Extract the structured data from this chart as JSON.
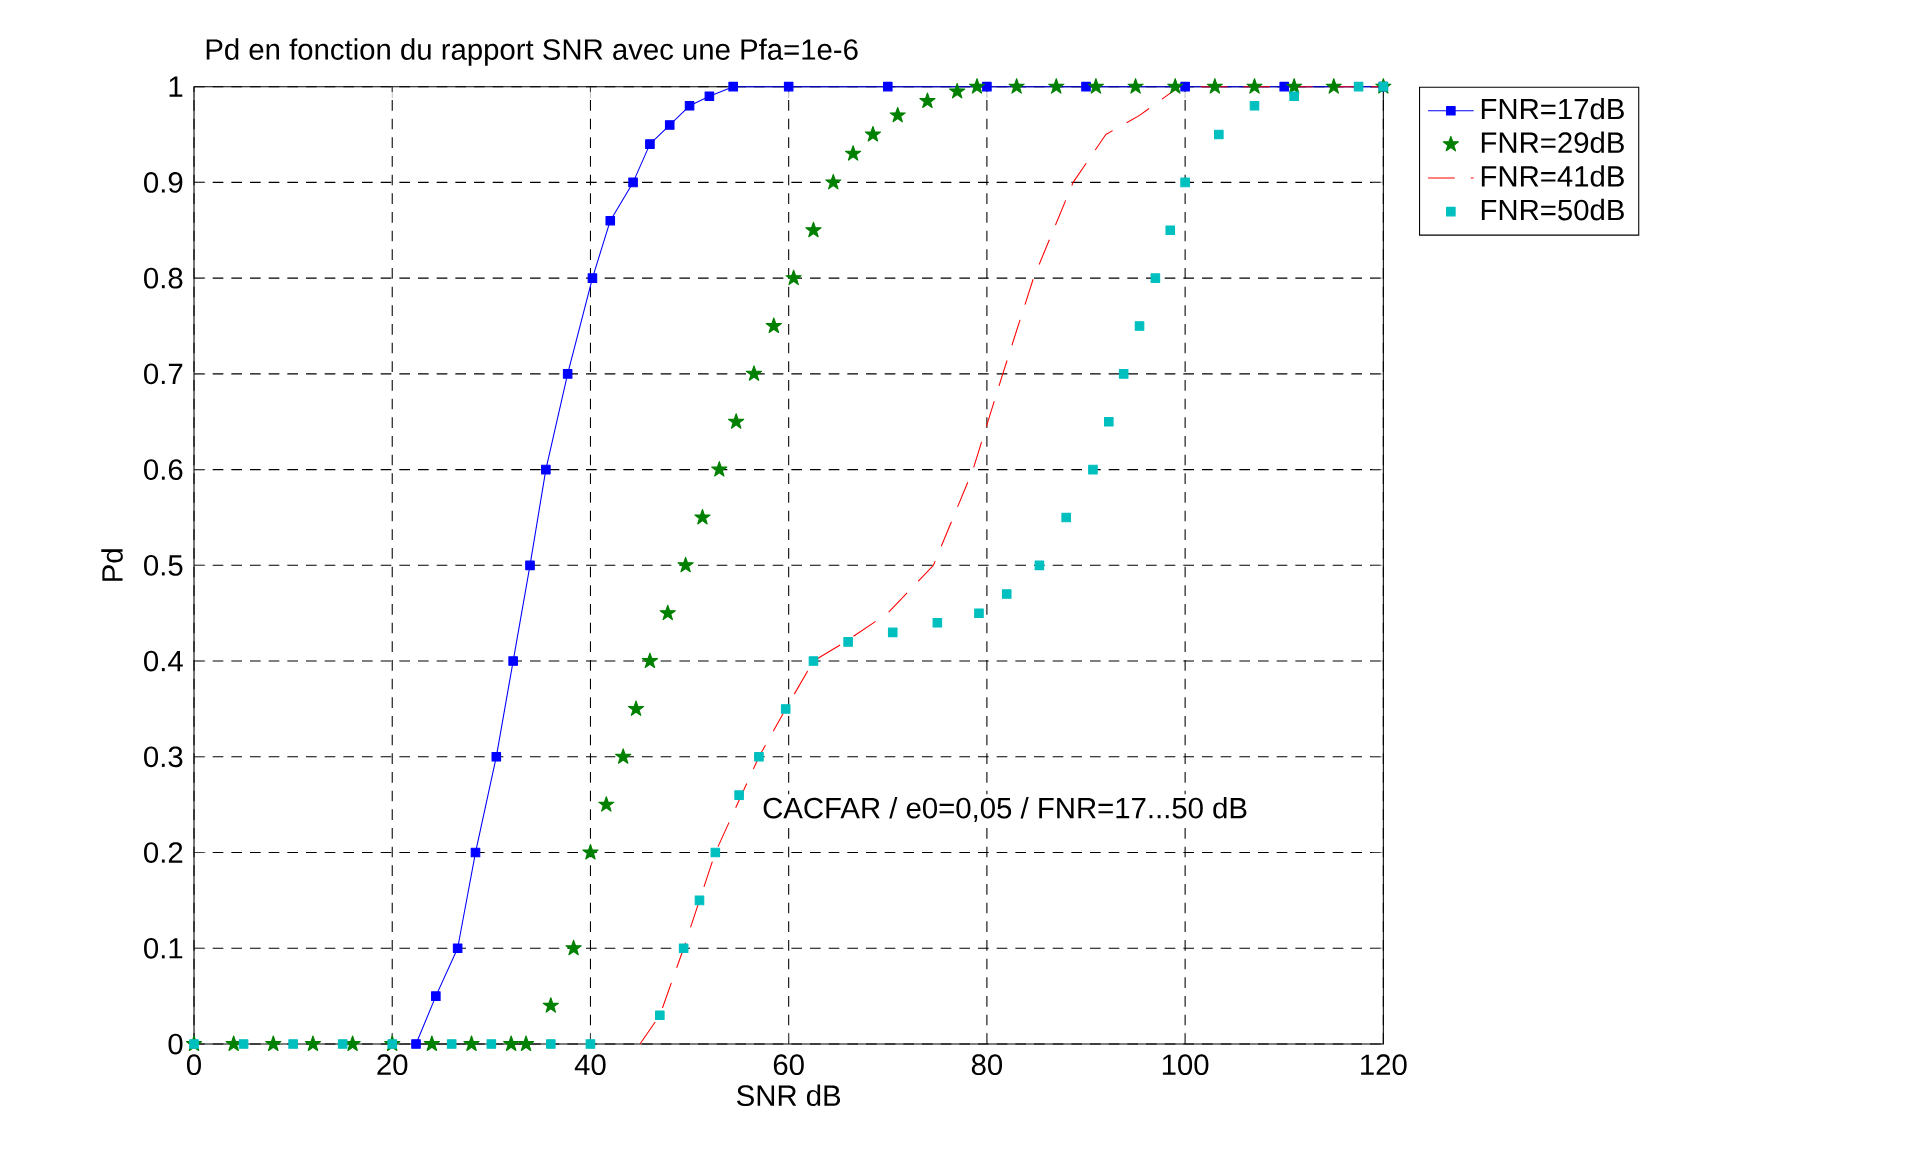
{
  "chart_data": {
    "type": "line",
    "title": "Pd en fonction du rapport SNR avec une Pfa=1e-6",
    "xlabel": "SNR dB",
    "ylabel": "Pd",
    "xlim": [
      0,
      120
    ],
    "ylim": [
      0,
      1
    ],
    "xticks": [
      0,
      20,
      40,
      60,
      80,
      100,
      120
    ],
    "yticks": [
      0,
      0.1,
      0.2,
      0.3,
      0.4,
      0.5,
      0.6,
      0.7,
      0.8,
      0.9,
      1
    ],
    "grid": true,
    "legend": "top right",
    "annotations": [
      "CACFAR / e0=0,05 / FNR=17...50 dB"
    ],
    "series": [
      {
        "name": "FNR=17dB",
        "color": "#0000ff",
        "marker": "square",
        "line_style": "solid",
        "x": [
          22.4,
          24.4,
          26.6,
          28.4,
          30.5,
          32.2,
          33.9,
          35.5,
          37.7,
          40.2,
          42,
          44.3,
          46,
          48,
          50,
          52,
          54.4,
          60,
          70,
          80,
          90,
          100,
          110,
          120
        ],
        "values": [
          0,
          0.05,
          0.1,
          0.2,
          0.3,
          0.4,
          0.5,
          0.6,
          0.7,
          0.8,
          0.86,
          0.9,
          0.94,
          0.96,
          0.98,
          0.99,
          1,
          1,
          1,
          1,
          1,
          1,
          1,
          1
        ]
      },
      {
        "name": "FNR=29dB",
        "color": "#008000",
        "type": "scatter",
        "marker": "star",
        "x": [
          0,
          4,
          8,
          12,
          16,
          20,
          24,
          28,
          32,
          33.5,
          36,
          38.3,
          40,
          41.6,
          43.3,
          44.6,
          46,
          47.8,
          49.6,
          51.3,
          53,
          54.7,
          56.5,
          58.5,
          60.5,
          62.5,
          64.5,
          66.5,
          68.5,
          71,
          74,
          77,
          79,
          83,
          87,
          91,
          95,
          99,
          103,
          107,
          111,
          115,
          120
        ],
        "values": [
          0,
          0,
          0,
          0,
          0,
          0,
          0,
          0,
          0,
          0,
          0.04,
          0.1,
          0.2,
          0.25,
          0.3,
          0.35,
          0.4,
          0.45,
          0.5,
          0.55,
          0.6,
          0.65,
          0.7,
          0.75,
          0.8,
          0.85,
          0.9,
          0.93,
          0.95,
          0.97,
          0.985,
          0.995,
          1,
          1,
          1,
          1,
          1,
          1,
          1,
          1,
          1,
          1,
          1
        ]
      },
      {
        "name": "FNR=41dB",
        "color": "#ff0000",
        "marker": "none",
        "line_style": "dashed",
        "x": [
          45,
          47,
          49.4,
          52.6,
          57,
          59.7,
          62.5,
          65.7,
          70,
          74.6,
          78.6,
          81.6,
          84.7,
          88.7,
          92,
          95.4,
          99.4,
          110,
          120
        ],
        "values": [
          0,
          0.03,
          0.1,
          0.2,
          0.3,
          0.35,
          0.4,
          0.42,
          0.45,
          0.5,
          0.6,
          0.7,
          0.8,
          0.9,
          0.95,
          0.97,
          1,
          1,
          1
        ]
      },
      {
        "name": "FNR=50dB",
        "color": "#00bfbf",
        "type": "scatter",
        "marker": "square",
        "x": [
          0,
          5,
          10,
          15,
          20,
          26,
          30,
          36,
          40,
          47,
          49.4,
          51,
          52.6,
          55,
          57,
          59.7,
          62.5,
          66,
          70.5,
          75,
          79.2,
          82,
          85.3,
          88,
          90.7,
          92.3,
          93.8,
          95.4,
          97,
          98.5,
          100,
          103.4,
          107,
          111,
          117.5,
          120
        ],
        "values": [
          0,
          0,
          0,
          0,
          0,
          0,
          0,
          0,
          0,
          0.03,
          0.1,
          0.15,
          0.2,
          0.26,
          0.3,
          0.35,
          0.4,
          0.42,
          0.43,
          0.44,
          0.45,
          0.47,
          0.5,
          0.55,
          0.6,
          0.65,
          0.7,
          0.75,
          0.8,
          0.85,
          0.9,
          0.95,
          0.98,
          0.99,
          1,
          1
        ]
      }
    ]
  }
}
